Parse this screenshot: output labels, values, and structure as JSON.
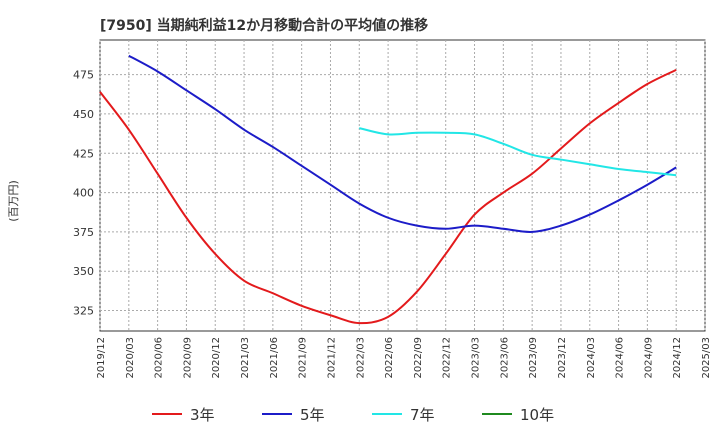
{
  "chart_data": {
    "type": "line",
    "title": "[7950]  当期純利益12か月移動合計の平均値の推移",
    "ylabel": "(百万円)",
    "xlabel": "",
    "ylim": [
      312,
      497
    ],
    "yticks": [
      325,
      350,
      375,
      400,
      425,
      450,
      475
    ],
    "xlim": [
      "2019-12",
      "2025-03"
    ],
    "xticks": [
      "2019/12",
      "2020/03",
      "2020/06",
      "2020/09",
      "2020/12",
      "2021/03",
      "2021/06",
      "2021/09",
      "2021/12",
      "2022/03",
      "2022/06",
      "2022/09",
      "2022/12",
      "2023/03",
      "2023/06",
      "2023/09",
      "2023/12",
      "2024/03",
      "2024/06",
      "2024/09",
      "2024/12",
      "2025/03"
    ],
    "grid": true,
    "legend_position": "bottom",
    "series": [
      {
        "name": "3年",
        "color": "#e31a1c",
        "points": [
          [
            "2019-12",
            464
          ],
          [
            "2020-03",
            440
          ],
          [
            "2020-06",
            412
          ],
          [
            "2020-09",
            384
          ],
          [
            "2020-12",
            361
          ],
          [
            "2021-03",
            344
          ],
          [
            "2021-06",
            336
          ],
          [
            "2021-09",
            328
          ],
          [
            "2021-12",
            322
          ],
          [
            "2022-03",
            317
          ],
          [
            "2022-06",
            321
          ],
          [
            "2022-09",
            337
          ],
          [
            "2022-12",
            361
          ],
          [
            "2023-03",
            386
          ],
          [
            "2023-06",
            400
          ],
          [
            "2023-09",
            412
          ],
          [
            "2023-12",
            428
          ],
          [
            "2024-03",
            444
          ],
          [
            "2024-06",
            457
          ],
          [
            "2024-09",
            469
          ],
          [
            "2024-12",
            478
          ]
        ]
      },
      {
        "name": "5年",
        "color": "#1c1cc8",
        "points": [
          [
            "2020-03",
            487
          ],
          [
            "2020-06",
            477
          ],
          [
            "2020-09",
            465
          ],
          [
            "2020-12",
            453
          ],
          [
            "2021-03",
            440
          ],
          [
            "2021-06",
            429
          ],
          [
            "2021-09",
            417
          ],
          [
            "2021-12",
            405
          ],
          [
            "2022-03",
            393
          ],
          [
            "2022-06",
            384
          ],
          [
            "2022-09",
            379
          ],
          [
            "2022-12",
            377
          ],
          [
            "2023-03",
            379
          ],
          [
            "2023-06",
            377
          ],
          [
            "2023-09",
            375
          ],
          [
            "2023-12",
            379
          ],
          [
            "2024-03",
            386
          ],
          [
            "2024-06",
            395
          ],
          [
            "2024-09",
            405
          ],
          [
            "2024-12",
            416
          ]
        ]
      },
      {
        "name": "7年",
        "color": "#22e6e6",
        "points": [
          [
            "2022-03",
            441
          ],
          [
            "2022-06",
            437
          ],
          [
            "2022-09",
            438
          ],
          [
            "2022-12",
            438
          ],
          [
            "2023-03",
            437
          ],
          [
            "2023-06",
            431
          ],
          [
            "2023-09",
            424
          ],
          [
            "2023-12",
            421
          ],
          [
            "2024-03",
            418
          ],
          [
            "2024-06",
            415
          ],
          [
            "2024-09",
            413
          ],
          [
            "2024-12",
            411
          ]
        ]
      },
      {
        "name": "10年",
        "color": "#1f8a1f",
        "points": []
      }
    ]
  }
}
